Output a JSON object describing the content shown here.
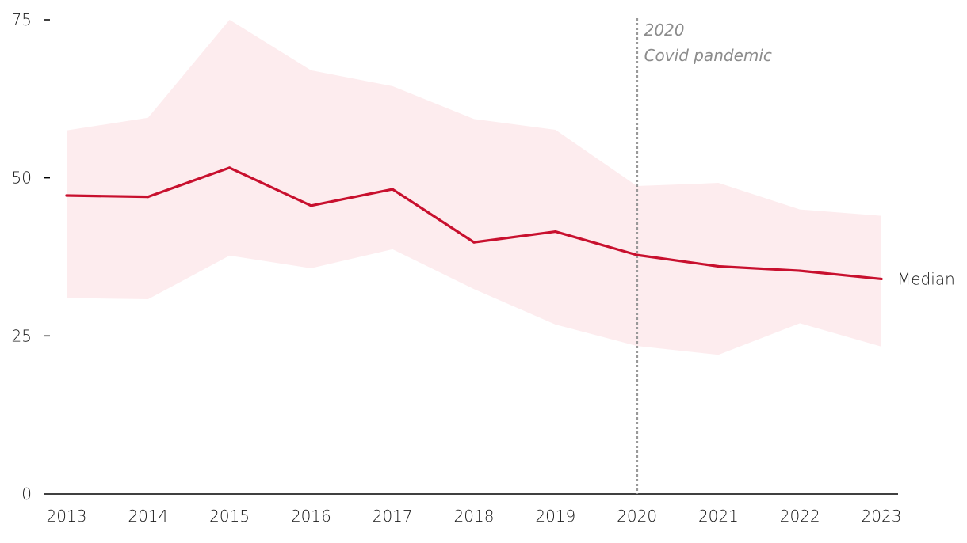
{
  "chart_data": {
    "type": "area",
    "x": [
      2013,
      2014,
      2015,
      2016,
      2017,
      2018,
      2019,
      2020,
      2021,
      2022,
      2023
    ],
    "x_tick_labels": [
      "2013",
      "2014",
      "2015",
      "2016",
      "2017",
      "2018",
      "2019",
      "2020",
      "2021",
      "2022",
      "2023"
    ],
    "series": [
      {
        "name": "Median",
        "values": [
          47.2,
          47.0,
          51.6,
          45.6,
          48.2,
          39.8,
          41.5,
          37.8,
          36.0,
          35.3,
          34.0
        ],
        "color": "#c8102e"
      }
    ],
    "range_band": {
      "upper": [
        57.5,
        59.5,
        75.0,
        67.0,
        64.5,
        59.3,
        57.6,
        48.7,
        49.2,
        45.0,
        44.0
      ],
      "lower": [
        31.0,
        30.8,
        37.7,
        35.7,
        38.7,
        32.4,
        26.8,
        23.4,
        22.0,
        27.0,
        23.3
      ],
      "color": "#fdecee"
    },
    "ylim": [
      0,
      75
    ],
    "y_ticks": [
      0,
      25,
      50,
      75
    ],
    "y_tick_labels": [
      "0",
      "25",
      "50",
      "75"
    ],
    "annotations": [
      {
        "x": 2020,
        "line_style": "dotted",
        "color": "#999999",
        "line1": "2020",
        "line2": "Covid pandemic"
      }
    ],
    "title": "",
    "xlabel": "",
    "ylabel": "",
    "grid": false,
    "axis_color": "#000000"
  }
}
